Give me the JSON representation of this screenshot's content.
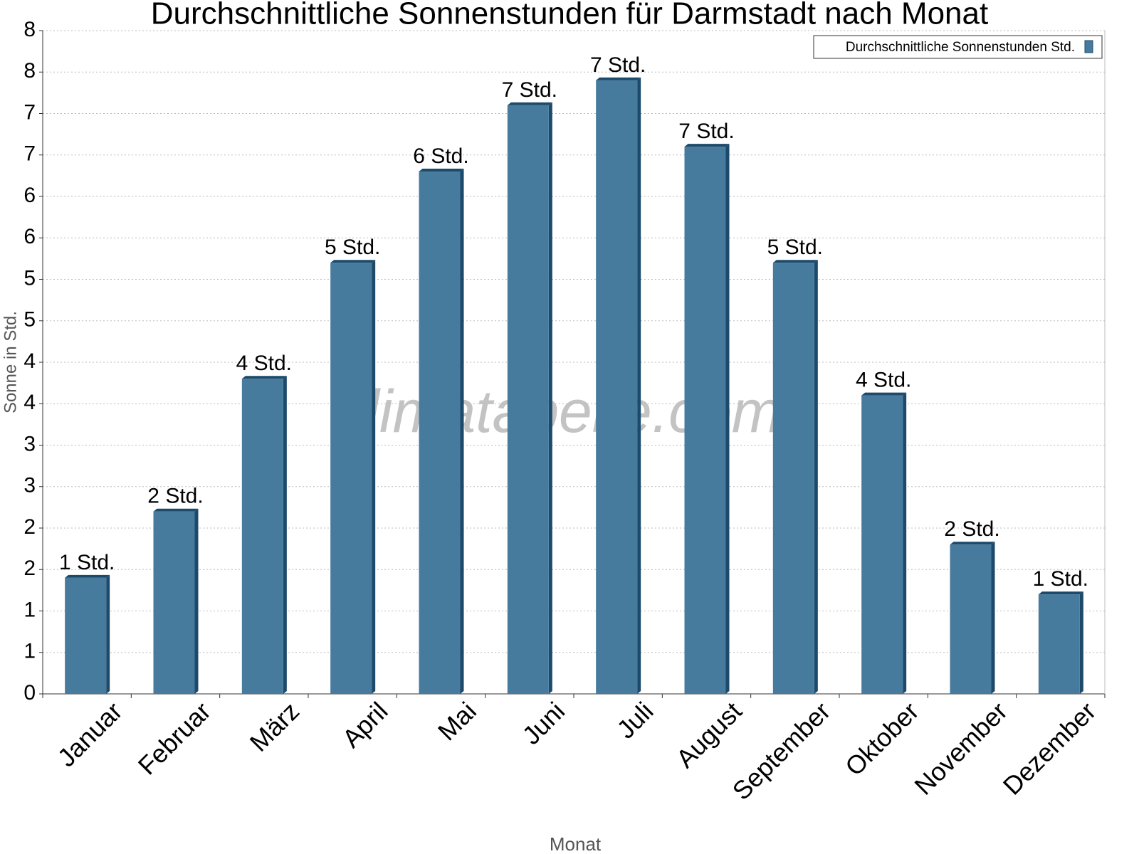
{
  "chart_data": {
    "type": "bar",
    "title": "Durchschnittliche Sonnenstunden für Darmstadt nach Monat",
    "watermark": "klimatabelle.com",
    "x_label": "Monat",
    "y_label": "Sonne in Std.",
    "categories": [
      "Januar",
      "Februar",
      "März",
      "April",
      "Mai",
      "Juni",
      "Juli",
      "August",
      "September",
      "Oktober",
      "November",
      "Dezember"
    ],
    "series": [
      {
        "name": "Durchschnittliche Sonnenstunden Std.",
        "color": "#477b9e",
        "values": [
          1.4,
          2.2,
          3.8,
          5.2,
          6.3,
          7.1,
          7.4,
          6.6,
          5.2,
          3.6,
          1.8,
          1.2
        ],
        "value_labels": [
          "1 Std.",
          "2 Std.",
          "4 Std.",
          "5 Std.",
          "6 Std.",
          "7 Std.",
          "7 Std.",
          "7 Std.",
          "5 Std.",
          "4 Std.",
          "2 Std.",
          "1 Std."
        ]
      }
    ],
    "ylim": [
      0,
      8
    ],
    "yticks": [
      0,
      {
        "value": 0.5,
        "label": "1"
      },
      1,
      {
        "value": 1.5,
        "label": "2"
      },
      2,
      {
        "value": 2.5,
        "label": "3"
      },
      3,
      {
        "value": 3.5,
        "label": "4"
      },
      4,
      {
        "value": 4.5,
        "label": "5"
      },
      5,
      {
        "value": 5.5,
        "label": "6"
      },
      6,
      {
        "value": 6.5,
        "label": "7"
      },
      7,
      {
        "value": 7.5,
        "label": "8"
      },
      8
    ],
    "grid": true,
    "legend_position": "top-right"
  }
}
